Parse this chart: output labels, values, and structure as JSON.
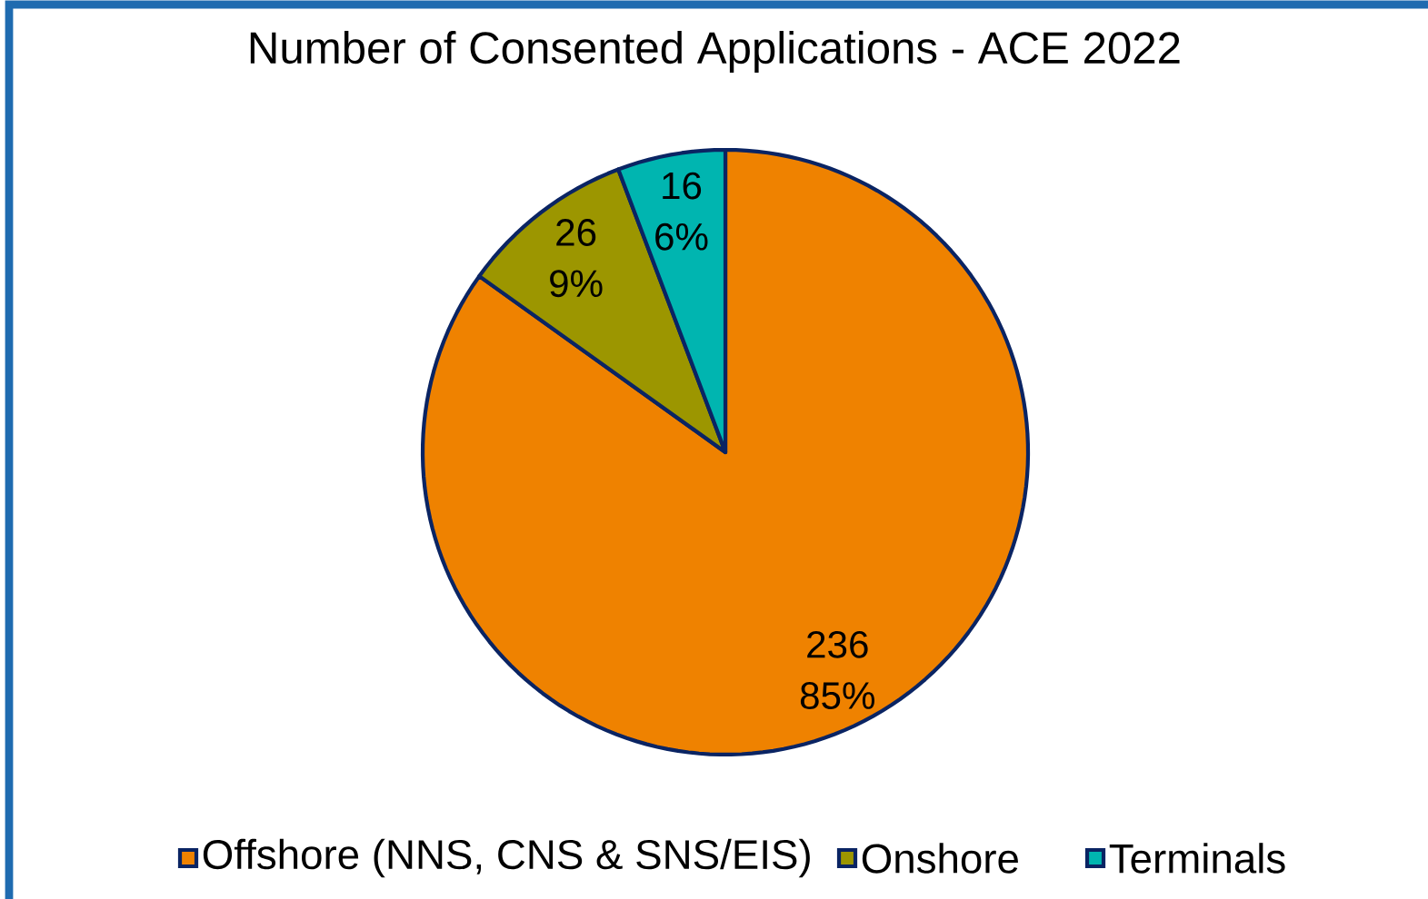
{
  "chart_data": {
    "type": "pie",
    "title": "Number of Consented Applications - ACE 2022",
    "categories": [
      "Offshore (NNS, CNS & SNS/EIS)",
      "Onshore",
      "Terminals"
    ],
    "values": [
      236,
      26,
      16
    ],
    "colors": [
      "#ef8200",
      "#9c9600",
      "#00b5b0"
    ],
    "value_labels": [
      "236 85%",
      "26 9%",
      "16 6%"
    ],
    "legend": "bottom"
  }
}
